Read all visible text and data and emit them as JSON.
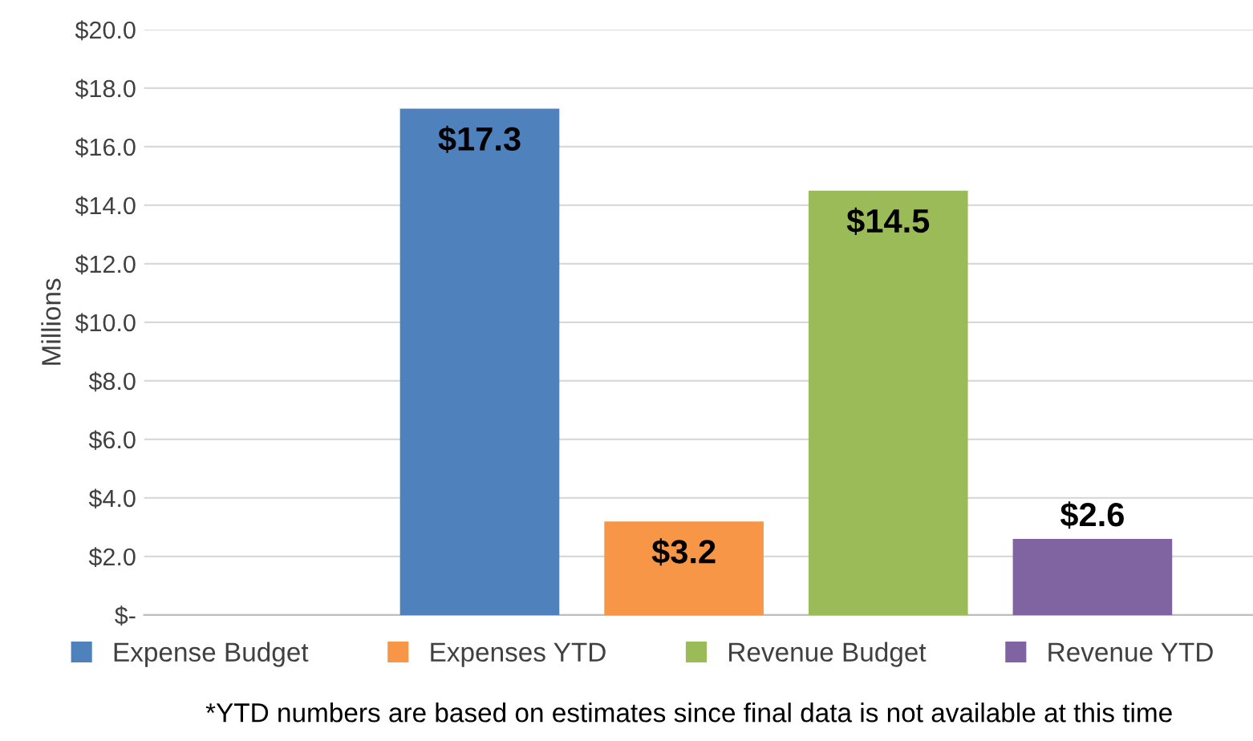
{
  "chart_data": {
    "type": "bar",
    "ylabel": "Millions",
    "categories": [
      null
    ],
    "series": [
      {
        "name": "Expense Budget",
        "color": "#4f81bd",
        "values": [
          17.3
        ],
        "value_labels": [
          "$17.3"
        ]
      },
      {
        "name": "Expenses YTD",
        "color": "#f79646",
        "values": [
          3.2
        ],
        "value_labels": [
          "$3.2"
        ]
      },
      {
        "name": "Revenue Budget",
        "color": "#9bbb59",
        "values": [
          14.5
        ],
        "value_labels": [
          "$14.5"
        ]
      },
      {
        "name": "Revenue YTD",
        "color": "#8064a2",
        "values": [
          2.6
        ],
        "value_labels": [
          "$2.6"
        ]
      }
    ],
    "ylim": [
      0,
      20
    ],
    "yticks": [
      {
        "value": 0,
        "label": "$-"
      },
      {
        "value": 2,
        "label": "$2.0"
      },
      {
        "value": 4,
        "label": "$4.0"
      },
      {
        "value": 6,
        "label": "$6.0"
      },
      {
        "value": 8,
        "label": "$8.0"
      },
      {
        "value": 10,
        "label": "$10.0"
      },
      {
        "value": 12,
        "label": "$12.0"
      },
      {
        "value": 14,
        "label": "$14.0"
      },
      {
        "value": 16,
        "label": "$16.0"
      },
      {
        "value": 18,
        "label": "$18.0"
      },
      {
        "value": 20,
        "label": "$20.0"
      }
    ],
    "grid": "y",
    "legend": "bottom",
    "annotations": [
      "*YTD numbers are based on estimates since final data is not available at this time"
    ]
  }
}
